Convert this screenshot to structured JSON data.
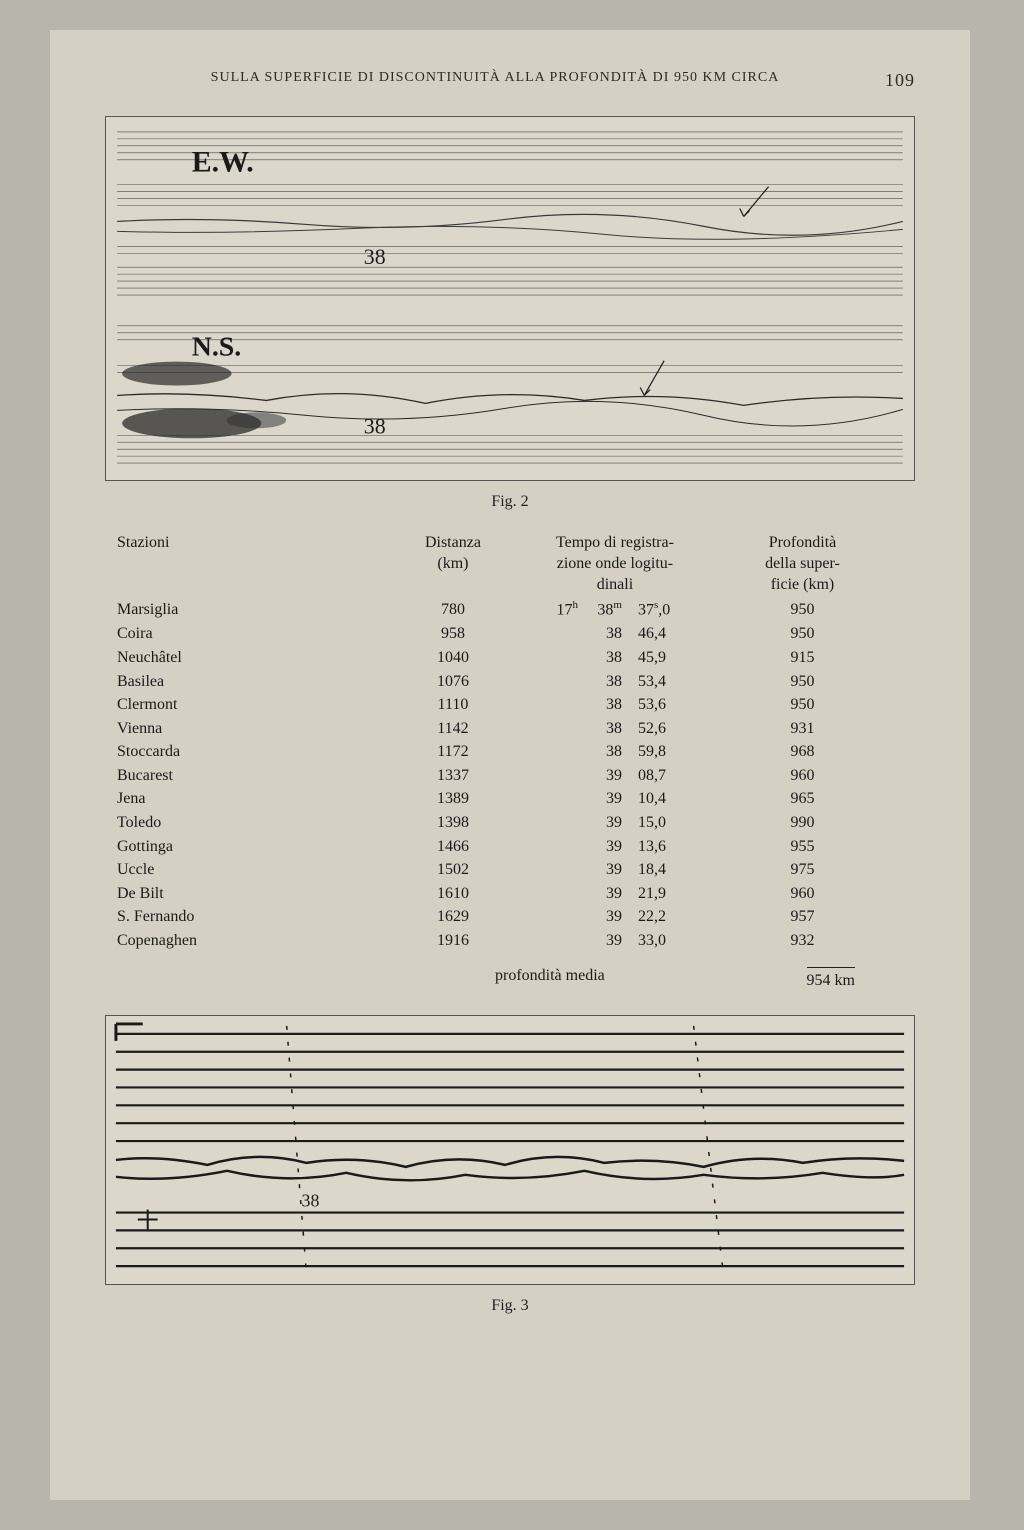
{
  "header": {
    "title": "SULLA SUPERFICIE DI DISCONTINUITÀ ALLA PROFONDITÀ DI 950 KM CIRCA",
    "page_number": "109"
  },
  "figure2": {
    "caption": "Fig. 2",
    "labels": {
      "ew": "E.W.",
      "ns": "N.S.",
      "marker1": "38",
      "marker2": "38"
    },
    "colors": {
      "line": "#3a3a3a",
      "background": "#dbd7cb",
      "dark_blob": "#2b2b2b"
    }
  },
  "figure3": {
    "caption": "Fig. 3",
    "label": "38",
    "colors": {
      "line": "#1a1a1a",
      "background": "#e0ddd1"
    }
  },
  "table": {
    "headers": {
      "stazioni": "Stazioni",
      "distanza": "Distanza\n(km)",
      "tempo": "Tempo di registra-\nzione onde logitu-\ndinali",
      "profondita": "Profondità\ndella super-\nficie (km)"
    },
    "rows": [
      {
        "station": "Marsiglia",
        "dist": "780",
        "h": "17",
        "m": "38",
        "s": "37",
        "sd": "0",
        "depth": "950",
        "hunit": "h",
        "munit": "m",
        "sunit": "s"
      },
      {
        "station": "Coira",
        "dist": "958",
        "h": "",
        "m": "38",
        "s": "46,4",
        "depth": "950"
      },
      {
        "station": "Neuchâtel",
        "dist": "1040",
        "h": "",
        "m": "38",
        "s": "45,9",
        "depth": "915"
      },
      {
        "station": "Basilea",
        "dist": "1076",
        "h": "",
        "m": "38",
        "s": "53,4",
        "depth": "950"
      },
      {
        "station": "Clermont",
        "dist": "1110",
        "h": "",
        "m": "38",
        "s": "53,6",
        "depth": "950"
      },
      {
        "station": "Vienna",
        "dist": "1142",
        "h": "",
        "m": "38",
        "s": "52,6",
        "depth": "931"
      },
      {
        "station": "Stoccarda",
        "dist": "1172",
        "h": "",
        "m": "38",
        "s": "59,8",
        "depth": "968"
      },
      {
        "station": "Bucarest",
        "dist": "1337",
        "h": "",
        "m": "39",
        "s": "08,7",
        "depth": "960"
      },
      {
        "station": "Jena",
        "dist": "1389",
        "h": "",
        "m": "39",
        "s": "10,4",
        "depth": "965"
      },
      {
        "station": "Toledo",
        "dist": "1398",
        "h": "",
        "m": "39",
        "s": "15,0",
        "depth": "990"
      },
      {
        "station": "Gottinga",
        "dist": "1466",
        "h": "",
        "m": "39",
        "s": "13,6",
        "depth": "955"
      },
      {
        "station": "Uccle",
        "dist": "1502",
        "h": "",
        "m": "39",
        "s": "18,4",
        "depth": "975"
      },
      {
        "station": "De Bilt",
        "dist": "1610",
        "h": "",
        "m": "39",
        "s": "21,9",
        "depth": "960"
      },
      {
        "station": "S. Fernando",
        "dist": "1629",
        "h": "",
        "m": "39",
        "s": "22,2",
        "depth": "957"
      },
      {
        "station": "Copenaghen",
        "dist": "1916",
        "h": "",
        "m": "39",
        "s": "33,0",
        "depth": "932"
      }
    ],
    "media": {
      "label": "profondità media",
      "value": "954 km"
    }
  }
}
